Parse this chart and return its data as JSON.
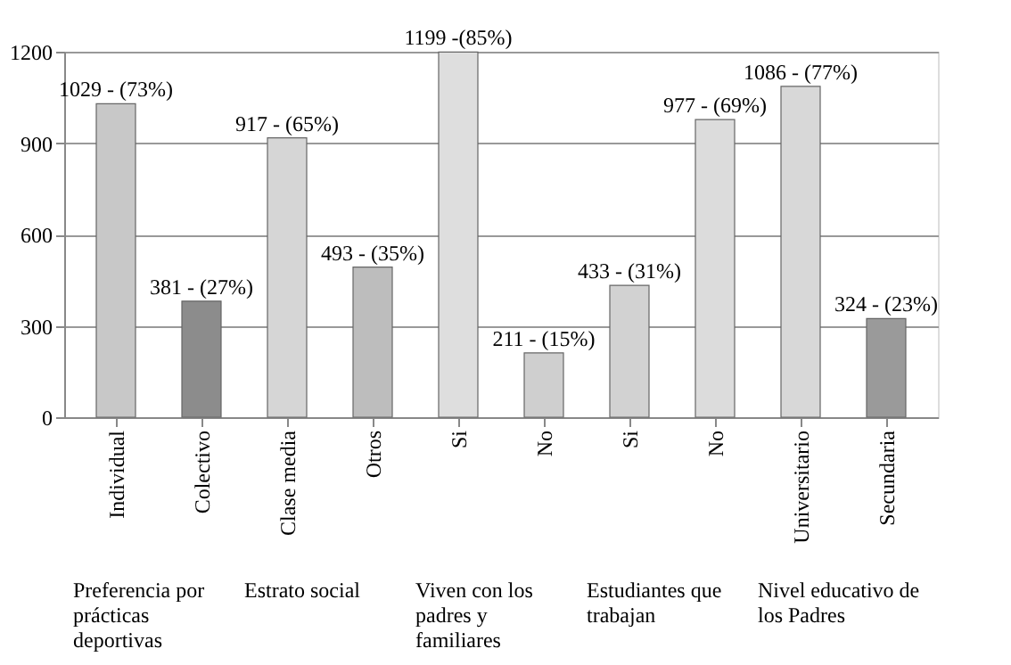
{
  "chart_data": {
    "type": "bar",
    "categories": [
      "Individual",
      "Colectivo",
      "Clase media",
      "Otros",
      "Si",
      "No",
      "Si",
      "No",
      "Universitario",
      "Secundaria"
    ],
    "values": [
      1029,
      381,
      917,
      493,
      1199,
      211,
      433,
      977,
      1086,
      324
    ],
    "value_labels": [
      "1029 - (73%)",
      "381 - (27%)",
      "917 - (65%)",
      "493 - (35%)",
      "1199 -(85%)",
      "211 - (15%)",
      "433 - (31%)",
      "977 - (69%)",
      "1086 - (77%)",
      "324 - (23%)"
    ],
    "colors": [
      "#c8c8c8",
      "#8c8c8c",
      "#d6d6d6",
      "#bdbdbd",
      "#dedede",
      "#cfcfcf",
      "#d2d2d2",
      "#dcdcdc",
      "#d8d8d8",
      "#9a9a9a"
    ],
    "ylim": [
      0,
      1200
    ],
    "yticks": [
      0,
      300,
      600,
      900,
      1200
    ],
    "grid": "y",
    "annotations": [
      "Preferencia por prácticas deportivas",
      "Estrato social",
      "Viven con los padres y familiares",
      "Estudiantes  que trabajan",
      "Nivel educativo de los Padres"
    ]
  }
}
